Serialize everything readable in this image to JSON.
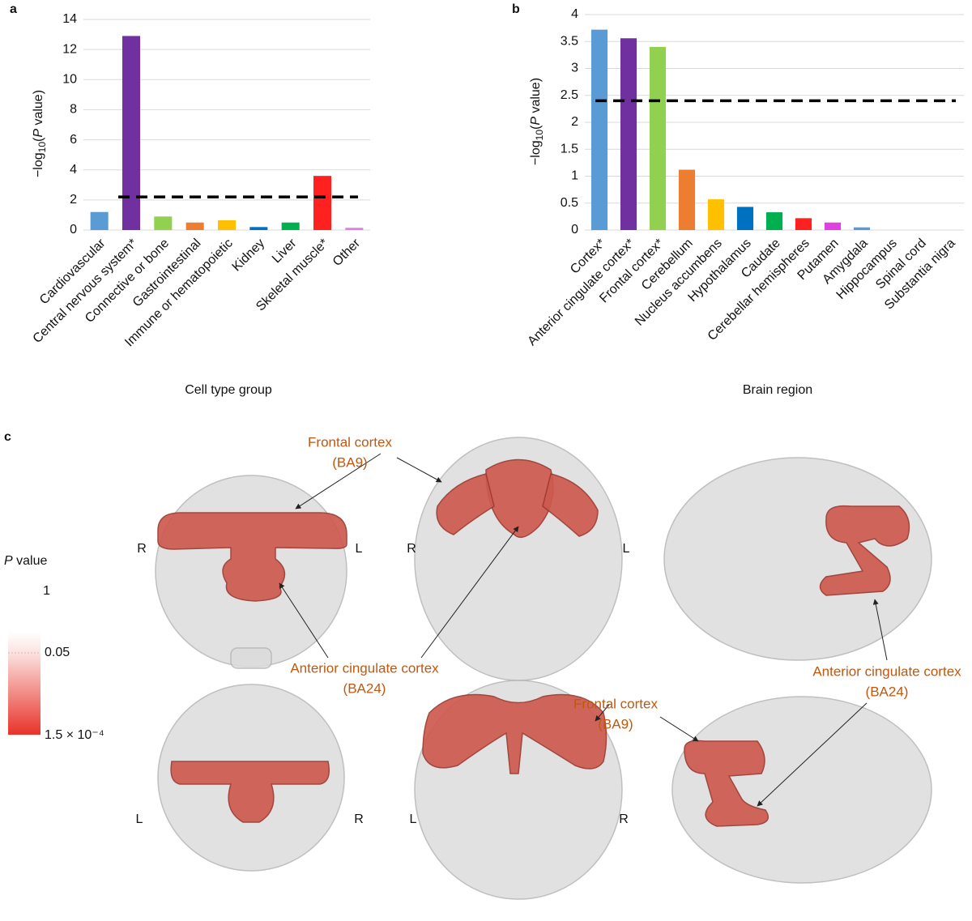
{
  "chart_data": [
    {
      "type": "bar",
      "panel": "a",
      "ylabel": {
        "pre": "−log",
        "sub": "10",
        "open": "(",
        "italic": "P",
        "rest": " value)"
      },
      "xlabel": "Cell type group",
      "categories": [
        "Cardiovascular",
        "Central nervous system*",
        "Connective or bone",
        "Gastrointestinal",
        "Immune or hematopoietic",
        "Kidney",
        "Liver",
        "Skeletal muscle*",
        "Other"
      ],
      "values": [
        1.2,
        12.9,
        0.9,
        0.5,
        0.65,
        0.2,
        0.5,
        3.6,
        0.15
      ],
      "colors": [
        "#5b9bd5",
        "#7030a0",
        "#92d050",
        "#ed7d31",
        "#ffc000",
        "#0070c0",
        "#00b050",
        "#ff2020",
        "#e879e8"
      ],
      "threshold": 2.2,
      "ylim": [
        0,
        14
      ],
      "yticks": [
        0,
        2,
        4,
        6,
        8,
        10,
        12,
        14
      ],
      "grid": true
    },
    {
      "type": "bar",
      "panel": "b",
      "ylabel": {
        "pre": "−log",
        "sub": "10",
        "open": "(",
        "italic": "P",
        "rest": " value)"
      },
      "xlabel": "Brain region",
      "categories": [
        "Cortex*",
        "Anterior cingulate cortex*",
        "Frontal cortex*",
        "Cerebellum",
        "Nucleus accumbens",
        "Hypothalamus",
        "Caudate",
        "Cerebellar hemispheres",
        "Putamen",
        "Amygdala",
        "Hippocampus",
        "Spinal cord",
        "Substantia nigra"
      ],
      "values": [
        3.72,
        3.56,
        3.4,
        1.12,
        0.57,
        0.43,
        0.33,
        0.22,
        0.14,
        0.05,
        0,
        0,
        0
      ],
      "colors": [
        "#5b9bd5",
        "#7030a0",
        "#92d050",
        "#ed7d31",
        "#ffc000",
        "#0070c0",
        "#00b050",
        "#ff2020",
        "#e040e0",
        "#5b9bd5",
        "#7030a0",
        "#92d050",
        "#ed7d31"
      ],
      "threshold": 2.4,
      "ylim": [
        0,
        4
      ],
      "yticks": [
        0,
        0.5,
        1,
        1.5,
        2,
        2.5,
        3,
        3.5,
        4
      ],
      "grid": true
    }
  ],
  "panel_c": {
    "panel": "c",
    "colorbar": {
      "title": {
        "italic": "P",
        "rest": " value"
      },
      "ticks": [
        {
          "value": 1,
          "label": "1"
        },
        {
          "value": 0.05,
          "label": "0.05"
        },
        {
          "value": 0.00015,
          "label": "1.5 × 10⁻⁴"
        }
      ]
    },
    "views": [
      {
        "left": "R",
        "right": "L"
      },
      {
        "left": "R",
        "right": "L"
      },
      {
        "left": "L",
        "right": "R"
      },
      {
        "left": "L",
        "right": "R"
      }
    ],
    "annotations": [
      [
        "Frontal cortex",
        "(BA9)"
      ],
      [
        "Anterior cingulate cortex",
        "(BA24)"
      ],
      [
        "Anterior cingulate cortex",
        "(BA24)"
      ],
      [
        "Frontal cortex",
        "(BA9)"
      ]
    ]
  }
}
